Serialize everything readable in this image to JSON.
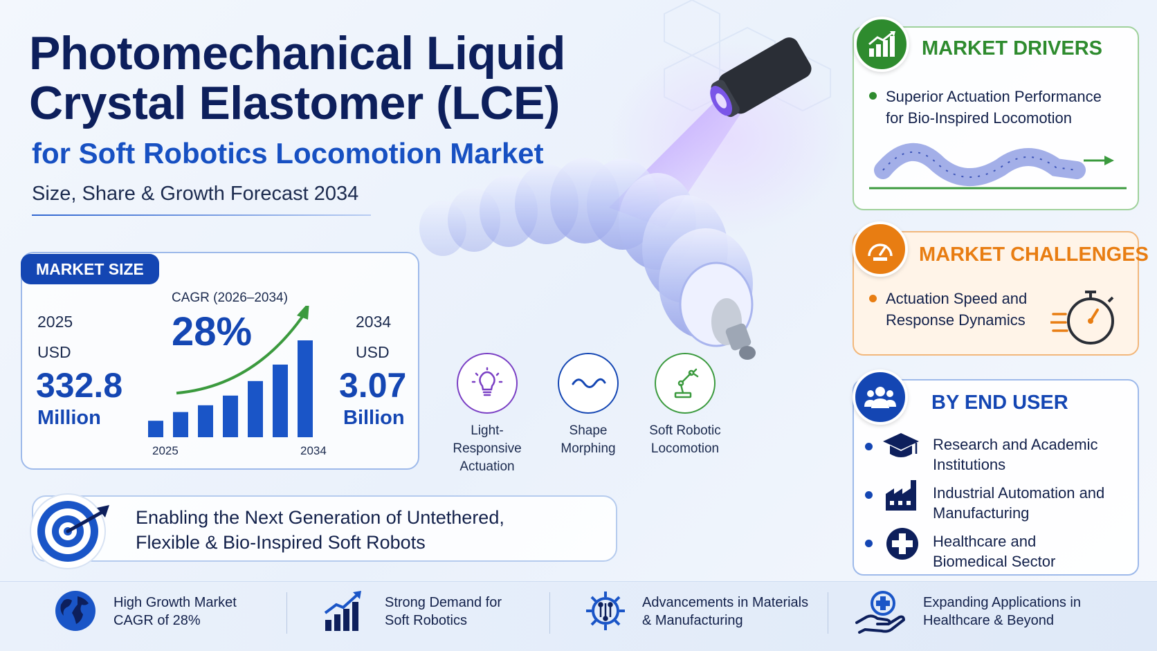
{
  "header": {
    "title_line1": "Photomechanical Liquid",
    "title_line2": "Crystal Elastomer (LCE)",
    "subtitle": "for Soft Robotics Locomotion Market",
    "forecast": "Size, Share & Growth Forecast 2034"
  },
  "market_size": {
    "badge": "MARKET SIZE",
    "start_year": "2025",
    "start_currency": "USD",
    "start_value": "332.8",
    "start_unit": "Million",
    "cagr_label": "CAGR (2026–2034)",
    "cagr_value": "28%",
    "end_year": "2034",
    "end_currency": "USD",
    "end_value": "3.07",
    "end_unit": "Billion",
    "chart": {
      "x_start": "2025",
      "x_end": "2034",
      "bar_levels": [
        0.17,
        0.26,
        0.33,
        0.43,
        0.58,
        0.75,
        1.0
      ],
      "color": "#1a55c7",
      "arrow_color": "#3b9a3e"
    }
  },
  "features": [
    {
      "name": "Light-Responsive Actuation",
      "line1": "Light-",
      "line2": "Responsive",
      "line3": "Actuation",
      "icon": "lightbulb-icon",
      "color": "#7a3fc4"
    },
    {
      "name": "Shape Morphing",
      "line1": "Shape",
      "line2": "Morphing",
      "icon": "wave-icon",
      "color": "#1446b3"
    },
    {
      "name": "Soft Robotic Locomotion",
      "line1": "Soft Robotic",
      "line2": "Locomotion",
      "icon": "robot-arm-icon",
      "color": "#3b9a3e"
    }
  ],
  "tagline": {
    "line1": "Enabling the Next Generation of Untethered,",
    "line2": "Flexible & Bio-Inspired Soft Robots"
  },
  "drivers": {
    "heading": "MARKET DRIVERS",
    "color": "#2e8b2e",
    "item_line1": "Superior Actuation Performance",
    "item_line2": "for Bio-Inspired Locomotion"
  },
  "challenges": {
    "heading": "MARKET CHALLENGES",
    "color": "#e87d12",
    "item_line1": "Actuation Speed and",
    "item_line2": "Response Dynamics"
  },
  "end_user": {
    "heading": "BY END USER",
    "color": "#1446b3",
    "items": [
      {
        "line1": "Research and Academic",
        "line2": "Institutions",
        "icon": "graduation-cap-icon"
      },
      {
        "line1": "Industrial Automation and",
        "line2": "Manufacturing",
        "icon": "factory-icon"
      },
      {
        "line1": "Healthcare and",
        "line2": "Biomedical Sector",
        "icon": "medical-cross-icon"
      }
    ]
  },
  "bottom_strip": [
    {
      "line1": "High Growth Market",
      "line2": "CAGR of 28%",
      "icon": "globe-icon"
    },
    {
      "line1": "Strong Demand for",
      "line2": "Soft Robotics",
      "icon": "growth-chart-icon"
    },
    {
      "line1": "Advancements in Materials",
      "line2": "& Manufacturing",
      "icon": "gear-circuit-icon"
    },
    {
      "line1": "Expanding Applications in",
      "line2": "Healthcare & Beyond",
      "icon": "hand-cross-icon"
    }
  ]
}
